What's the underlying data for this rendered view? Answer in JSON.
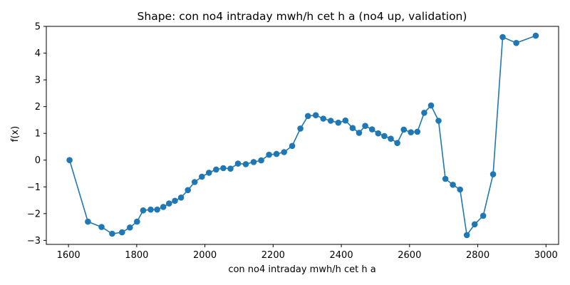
{
  "chart_data": {
    "type": "line",
    "title": "Shape: con no4 intraday mwh/h cet h a (no4 up, validation)",
    "xlabel": "con no4 intraday mwh/h cet h a",
    "ylabel": "f(x)",
    "xlim": [
      1535,
      3037
    ],
    "ylim": [
      -3.15,
      5.0
    ],
    "xticks": [
      1600,
      1800,
      2000,
      2200,
      2400,
      2600,
      2800,
      3000
    ],
    "yticks": [
      -3,
      -2,
      -1,
      0,
      1,
      2,
      3,
      4,
      5
    ],
    "grid": false,
    "color": "#1f77b4",
    "series": [
      {
        "x": [
          1603,
          1657,
          1697,
          1728,
          1757,
          1780,
          1801,
          1819,
          1841,
          1860,
          1878,
          1895,
          1912,
          1930,
          1950,
          1970,
          1991,
          2012,
          2033,
          2054,
          2075,
          2097,
          2120,
          2143,
          2165,
          2188,
          2210,
          2232,
          2256,
          2280,
          2302,
          2325,
          2347,
          2369,
          2391,
          2412,
          2433,
          2452,
          2470,
          2490,
          2508,
          2526,
          2545,
          2564,
          2583,
          2604,
          2623,
          2643,
          2663,
          2685,
          2705,
          2727,
          2748,
          2768,
          2791,
          2816,
          2845,
          2873,
          2913,
          2970
        ],
        "y": [
          0.0,
          -2.3,
          -2.5,
          -2.75,
          -2.7,
          -2.52,
          -2.3,
          -1.88,
          -1.85,
          -1.85,
          -1.75,
          -1.62,
          -1.52,
          -1.4,
          -1.12,
          -0.82,
          -0.62,
          -0.47,
          -0.35,
          -0.3,
          -0.32,
          -0.13,
          -0.15,
          -0.07,
          -0.01,
          0.2,
          0.23,
          0.3,
          0.53,
          1.18,
          1.65,
          1.68,
          1.55,
          1.47,
          1.4,
          1.48,
          1.2,
          1.02,
          1.28,
          1.15,
          1.0,
          0.9,
          0.8,
          0.64,
          1.14,
          1.04,
          1.06,
          1.77,
          2.04,
          1.47,
          -0.7,
          -0.92,
          -1.1,
          -2.8,
          -2.4,
          -2.08,
          -0.53,
          4.6,
          4.38,
          4.65
        ]
      }
    ]
  }
}
